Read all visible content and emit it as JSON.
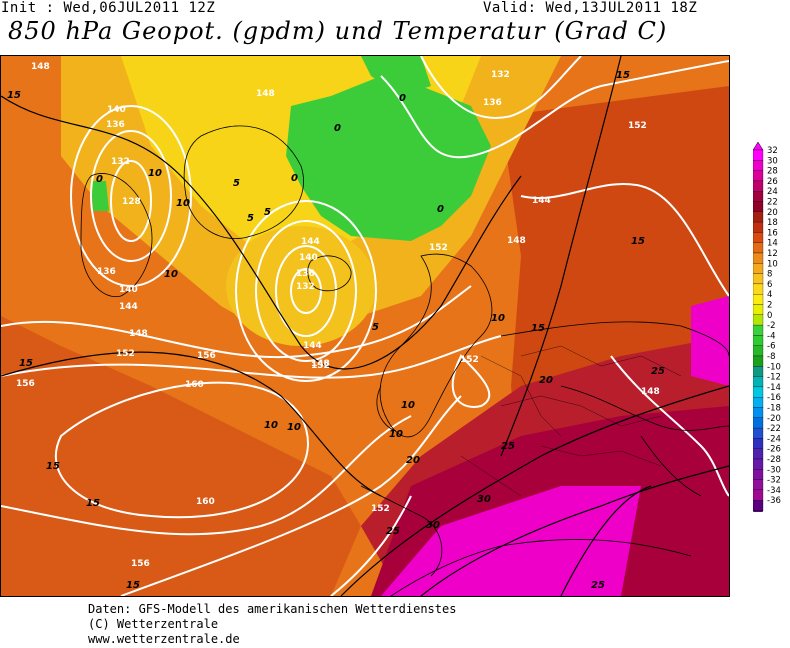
{
  "header": {
    "init": "Init : Wed,06JUL2011  12Z",
    "valid": "Valid: Wed,13JUL2011  18Z",
    "title": "850 hPa Geopot. (gpdm) und Temperatur (Grad C)"
  },
  "legend": {
    "levels": [
      "32",
      "30",
      "28",
      "26",
      "24",
      "22",
      "20",
      "18",
      "16",
      "14",
      "12",
      "10",
      "8",
      "6",
      "4",
      "2",
      "0",
      "-2",
      "-4",
      "-6",
      "-8",
      "-10",
      "-12",
      "-14",
      "-16",
      "-18",
      "-20",
      "-22",
      "-24",
      "-26",
      "-28",
      "-30",
      "-32",
      "-34",
      "-36"
    ],
    "colors": [
      "#ff00ff",
      "#ee00cc",
      "#dd0099",
      "#c0006a",
      "#a00040",
      "#900028",
      "#a31f12",
      "#c03010",
      "#d84a10",
      "#e56a14",
      "#ee8a18",
      "#f4a81c",
      "#f8c21e",
      "#fbd91a",
      "#fdeb10",
      "#e8f000",
      "#b5e600",
      "#3ad23a",
      "#2ecc2e",
      "#26b826",
      "#1aa01a",
      "#0d9a80",
      "#00b4b4",
      "#00c8e0",
      "#00b0f0",
      "#0090f0",
      "#0070e0",
      "#2050d0",
      "#3030c0",
      "#5020b0",
      "#6818a8",
      "#7f10a0",
      "#90109a",
      "#a00a90",
      "#5a0080"
    ]
  },
  "map": {
    "geopotential_labels": [
      "148",
      "140",
      "136",
      "132",
      "128",
      "136",
      "140",
      "144",
      "148",
      "152",
      "156",
      "160",
      "152",
      "156",
      "160",
      "156",
      "148",
      "152",
      "136",
      "132",
      "144",
      "148",
      "140",
      "144",
      "136",
      "132",
      "152",
      "152",
      "148",
      "144",
      "152",
      "148"
    ],
    "temperature_labels": [
      "15",
      "10",
      "10",
      "10",
      "5",
      "5",
      "5",
      "5",
      "0",
      "0",
      "0",
      "0",
      "0",
      "10",
      "10",
      "15",
      "15",
      "15",
      "15",
      "15",
      "20",
      "25",
      "25",
      "25",
      "30",
      "30",
      "25",
      "15",
      "10",
      "10",
      "20",
      "10",
      "15"
    ]
  },
  "credits": {
    "line1": "Daten: GFS-Modell des amerikanischen Wetterdienstes",
    "line2": "(C) Wetterzentrale",
    "line3": "www.wetterzentrale.de"
  }
}
